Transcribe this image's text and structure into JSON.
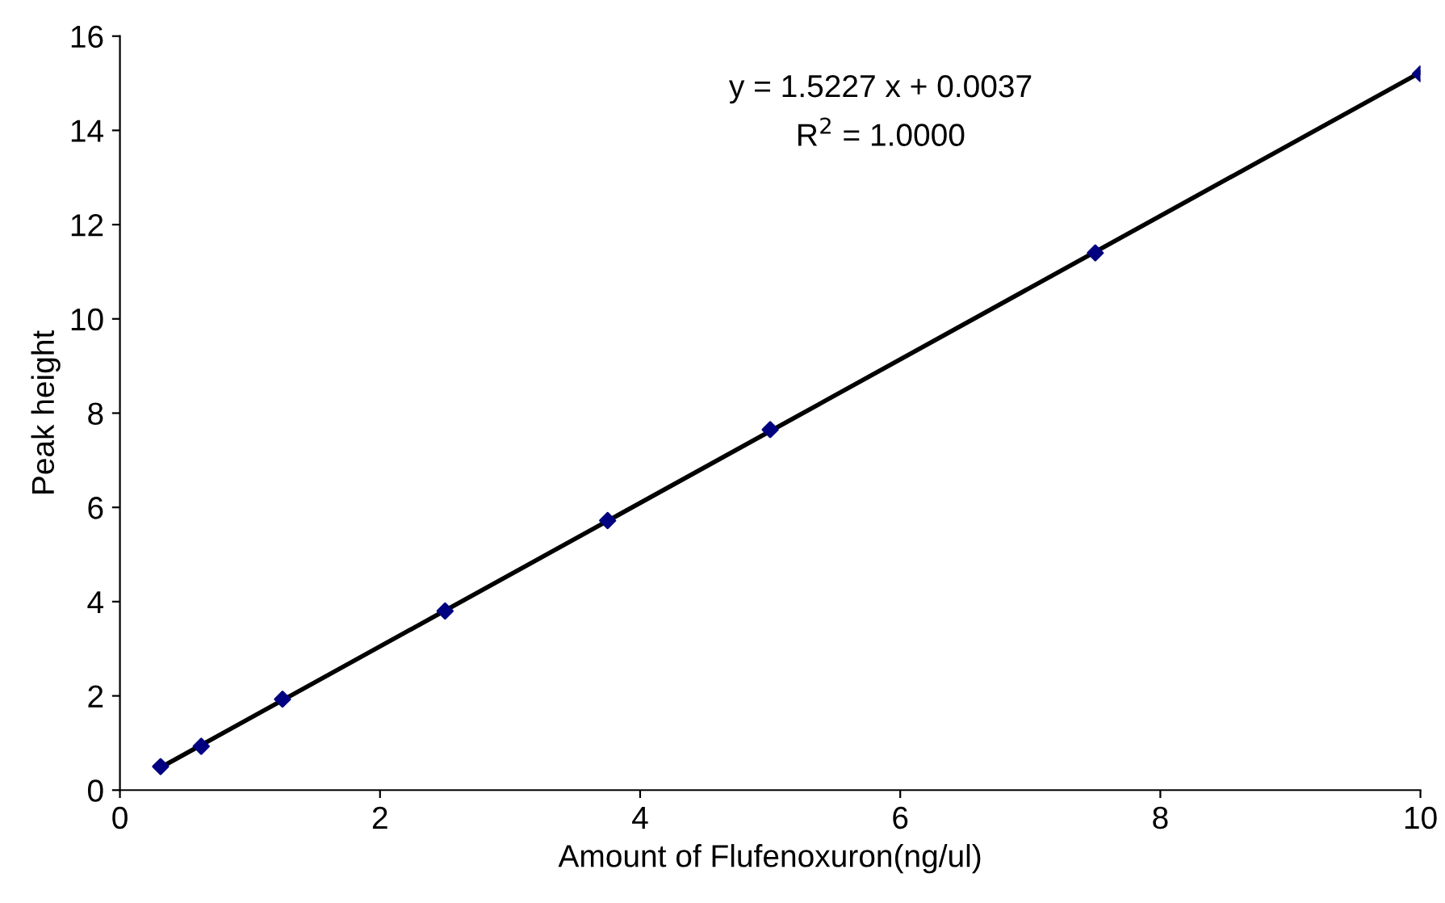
{
  "chart_data": {
    "type": "scatter",
    "xlabel": "Amount of Flufenoxuron(ng/ul)",
    "ylabel": "Peak height",
    "xlim": [
      0,
      10
    ],
    "xticks": [
      0,
      2,
      4,
      6,
      8,
      10
    ],
    "ylim": [
      0,
      16
    ],
    "yticks": [
      0,
      2,
      4,
      6,
      8,
      10,
      12,
      14,
      16
    ],
    "grid": false,
    "legend": false,
    "series": [
      {
        "color": "#000080",
        "marker": "diamond",
        "x": [
          0.3125,
          0.625,
          1.25,
          2.5,
          3.75,
          5,
          7.5,
          10
        ],
        "values": [
          0.5,
          0.93,
          1.93,
          3.8,
          5.72,
          7.65,
          11.4,
          15.2
        ]
      },
      {
        "type": "line",
        "color": "#000000",
        "marker": "none",
        "line_style": "solid",
        "x": [
          0.3125,
          10
        ],
        "values": [
          0.48,
          15.23
        ]
      }
    ],
    "annotations": [
      "y = 1.5227 x + 0.0037",
      "R$^{2}$ = 1.0000"
    ]
  }
}
